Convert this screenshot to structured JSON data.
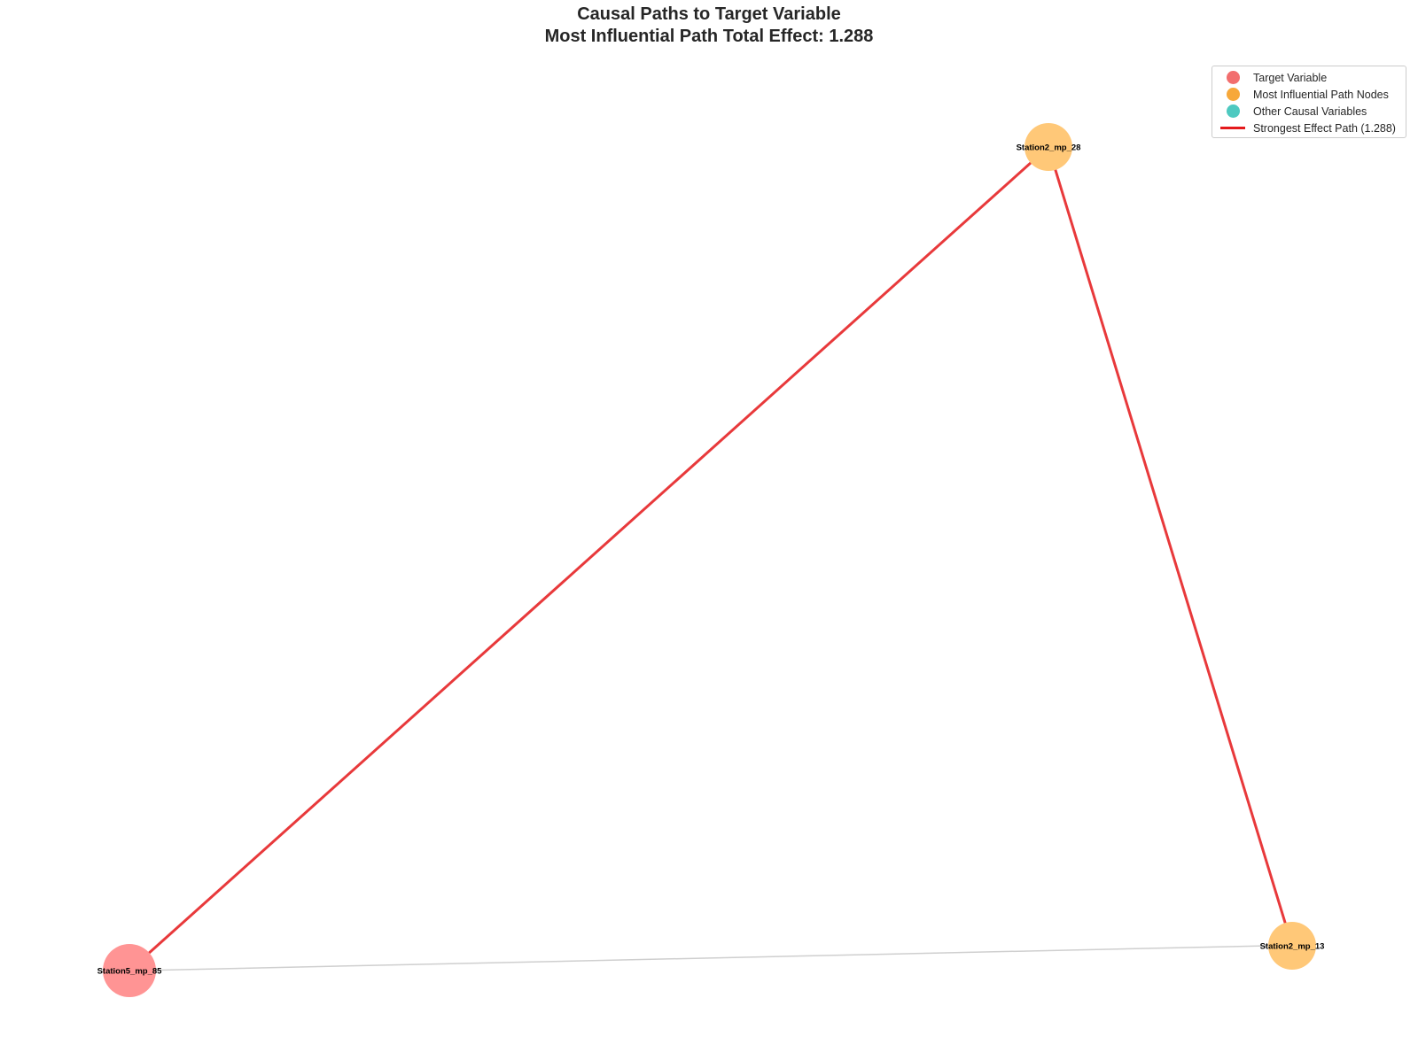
{
  "title": {
    "line1": "Causal Paths to Target Variable",
    "line2": "Most Influential Path Total Effect: 1.288"
  },
  "colors": {
    "target": "#ff6b6b",
    "path_node": "#ffa726",
    "other_node": "#4ecdc4",
    "strong_edge": "#e41a1c",
    "weak_edge": "#cccccc"
  },
  "legend": {
    "target": "Target Variable",
    "path_nodes": "Most Influential Path Nodes",
    "other": "Other Causal Variables",
    "strong_path": "Strongest Effect Path (1.288)"
  },
  "graph": {
    "nodes": [
      {
        "id": "Station2_mp_28",
        "role": "path_node"
      },
      {
        "id": "Station2_mp_13",
        "role": "path_node"
      },
      {
        "id": "Station5_mp_85",
        "role": "target"
      }
    ],
    "edges": [
      {
        "source": "Station2_mp_28",
        "target": "Station5_mp_85",
        "strongest_path": true
      },
      {
        "source": "Station2_mp_13",
        "target": "Station2_mp_28",
        "strongest_path": true
      },
      {
        "source": "Station2_mp_13",
        "target": "Station5_mp_85",
        "strongest_path": false
      }
    ]
  }
}
